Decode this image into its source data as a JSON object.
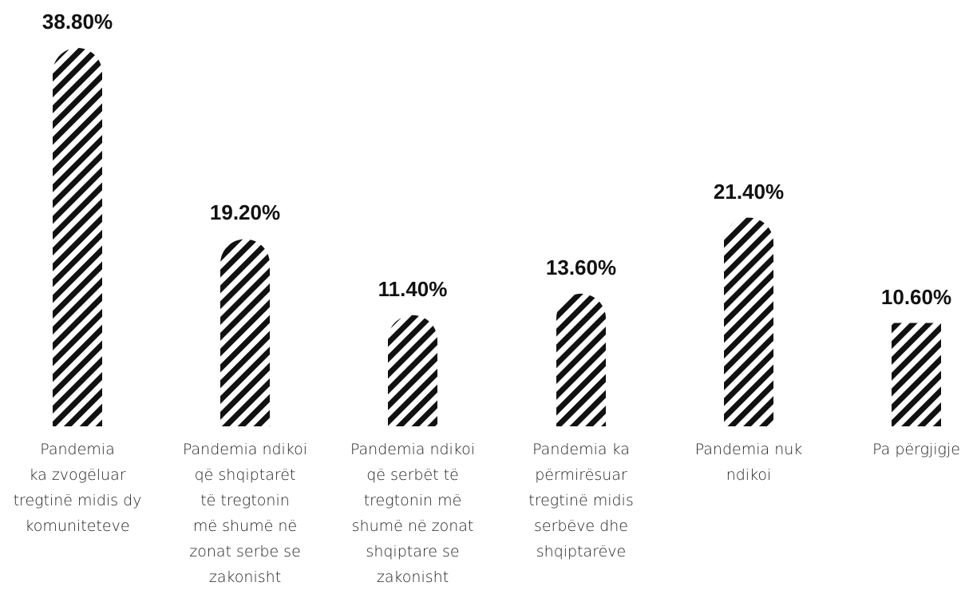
{
  "chart_data": {
    "type": "bar",
    "categories": [
      "Pandemia ka zvogëluar tregtinë midis dy komuniteteve",
      "Pandemia ndikoi që shqiptarët të tregtonin më shumë në zonat serbe se zakonisht",
      "Pandemia ndikoi që serbët të tregtonin më shumë në zonat shqiptare se zakonisht",
      "Pandemia ka përmirësuar tregtinë midis serbëve dhe shqiptarëve",
      "Pandemia nuk ndikoi",
      "Pa përgjigje"
    ],
    "category_lines": [
      [
        "Pandemia",
        "ka zvogëluar",
        "tregtinë midis dy",
        "komuniteteve"
      ],
      [
        "Pandemia ndikoi",
        "që shqiptarët",
        "të tregtonin",
        "më shumë në",
        "zonat serbe se",
        "zakonisht"
      ],
      [
        "Pandemia ndikoi",
        "që serbët të",
        "tregtonin më",
        "shumë në zonat",
        "shqiptare se",
        "zakonisht"
      ],
      [
        "Pandemia ka",
        "përmirësuar",
        "tregtinë midis",
        "serbëve dhe",
        "shqiptarëve"
      ],
      [
        "Pandemia nuk",
        "ndikoi"
      ],
      [
        "Pa përgjigje"
      ]
    ],
    "values": [
      38.8,
      19.2,
      11.4,
      13.6,
      21.4,
      10.6
    ],
    "value_labels": [
      "38.80%",
      "19.20%",
      "11.40%",
      "13.60%",
      "21.40%",
      "10.60%"
    ],
    "ylim": [
      0,
      38.8
    ],
    "grid": false,
    "legend": "none",
    "bar_fill": "diagonal black stripes",
    "colors": {
      "stripe": "#111111",
      "background": "#ffffff",
      "text": "#111111"
    }
  }
}
